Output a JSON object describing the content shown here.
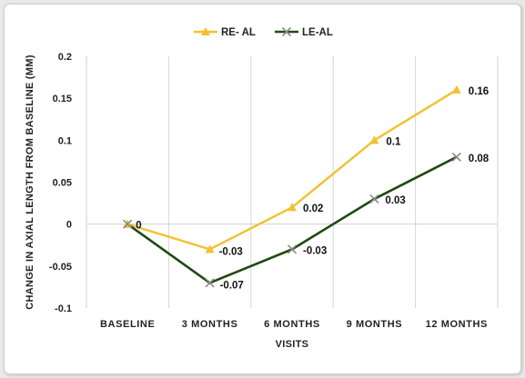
{
  "chart_data": {
    "type": "line",
    "categories": [
      "BASELINE",
      "3 MONTHS",
      "6 MONTHS",
      "9 MONTHS",
      "12 MONTHS"
    ],
    "series": [
      {
        "name": "RE- AL",
        "values": [
          0,
          -0.03,
          0.02,
          0.1,
          0.16
        ],
        "color": "#f2c12e",
        "marker": "triangle"
      },
      {
        "name": "LE-AL",
        "values": [
          0,
          -0.07,
          -0.03,
          0.03,
          0.08
        ],
        "color": "#1e4a12",
        "marker": "x"
      }
    ],
    "data_labels": [
      "0",
      "-0.03",
      "-0.07",
      "-0.03",
      "0.02",
      "0.03",
      "0.1",
      "0.08",
      "0.16"
    ],
    "y_ticks": [
      "0.2",
      "0.15",
      "0.1",
      "0.05",
      "0",
      "-0.05",
      "-0.1"
    ],
    "xlabel": "VISITS",
    "ylabel": "CHANGE IN AXIAL LENGTH FROM BASELINE (MM)",
    "ylim": [
      -0.1,
      0.2
    ],
    "grid": "vertical",
    "legend_position": "top"
  }
}
